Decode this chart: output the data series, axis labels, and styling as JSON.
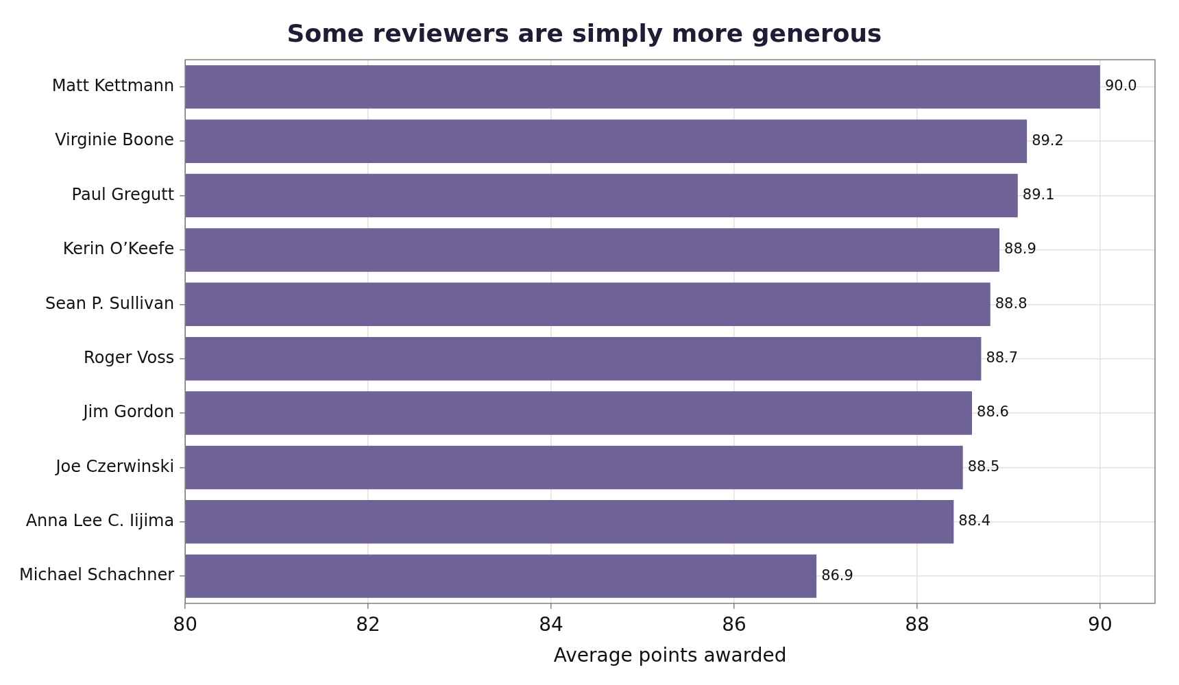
{
  "chart_data": {
    "type": "bar",
    "orientation": "horizontal",
    "title": "Some reviewers are simply more generous",
    "xlabel": "Average points awarded",
    "categories": [
      "Matt Kettmann",
      "Virginie Boone",
      "Paul Gregutt",
      "Kerin O’Keefe",
      "Sean P. Sullivan",
      "Roger Voss",
      "Jim Gordon",
      "Joe Czerwinski",
      "Anna Lee C. Iijima",
      "Michael Schachner"
    ],
    "values": [
      90.0,
      89.2,
      89.1,
      88.9,
      88.8,
      88.7,
      88.6,
      88.5,
      88.4,
      86.9
    ],
    "value_labels": [
      "90.0",
      "89.2",
      "89.1",
      "88.9",
      "88.8",
      "88.7",
      "88.6",
      "88.5",
      "88.4",
      "86.9"
    ],
    "color": "#6f6296",
    "xlim": [
      80,
      90.6
    ],
    "xticks": [
      80,
      82,
      84,
      86,
      88,
      90
    ],
    "grid": true,
    "legend": false
  }
}
